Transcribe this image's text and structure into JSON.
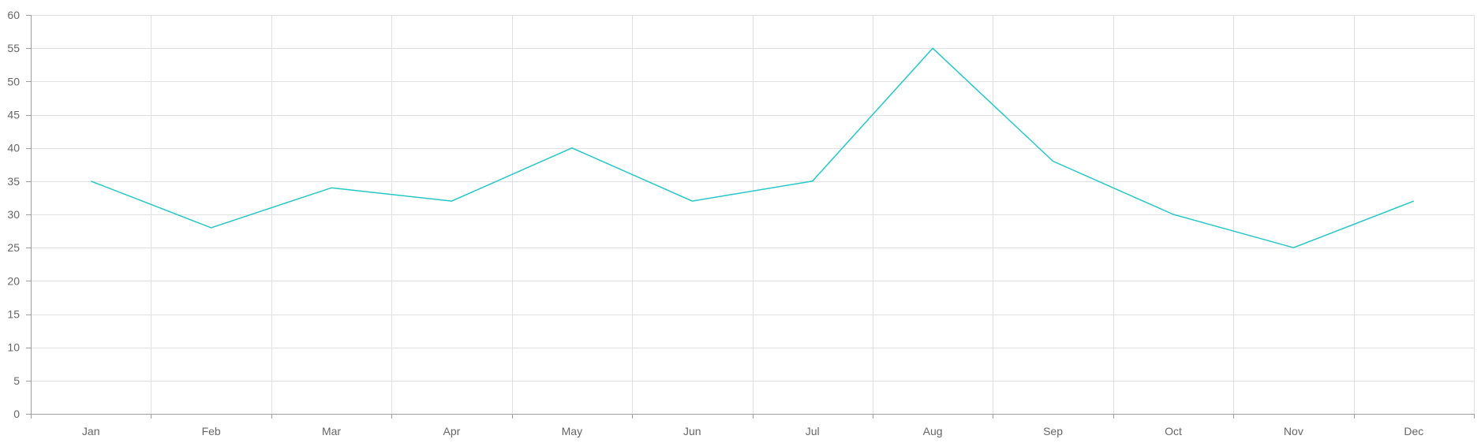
{
  "chart_data": {
    "type": "line",
    "categories": [
      "Jan",
      "Feb",
      "Mar",
      "Apr",
      "May",
      "Jun",
      "Jul",
      "Aug",
      "Sep",
      "Oct",
      "Nov",
      "Dec"
    ],
    "series": [
      {
        "values": [
          35,
          28,
          34,
          32,
          40,
          32,
          35,
          55,
          38,
          30,
          25,
          32
        ],
        "color": "#26c6c6"
      }
    ],
    "ylim": [
      0,
      60
    ],
    "yticks": [
      "0",
      "5",
      "10",
      "15",
      "20",
      "25",
      "30",
      "35",
      "40",
      "45",
      "50",
      "55",
      "60"
    ],
    "grid": true,
    "legend": "none",
    "title": "",
    "xlabel": "",
    "ylabel": ""
  }
}
